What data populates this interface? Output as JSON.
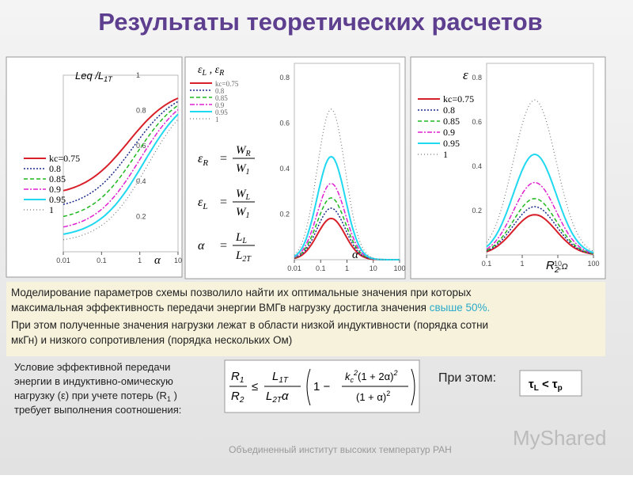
{
  "title": "Результаты теоретических  расчетов",
  "panels": [
    {
      "ylabel": {
        "main": "Leq /L",
        "sub": "1T"
      },
      "xlabel": "α",
      "xticks": [
        "0.01",
        "0.1",
        "1",
        "10"
      ],
      "yticks": [
        "1",
        "0.8",
        "0.6",
        "0.4",
        "0.2"
      ],
      "legend": [
        "kc=0.75",
        "0.8",
        "0.85",
        "0.9",
        "0.95",
        "1"
      ]
    },
    {
      "ylabel": {
        "a": "ε",
        "asub": "L",
        "sep": " , ",
        "b": "ε",
        "bsub": "R"
      },
      "xlabel": "α",
      "xticks": [
        "0.01",
        "0.1",
        "1",
        "10",
        "100"
      ],
      "yticks": [
        "0.8",
        "0.6",
        "0.4",
        "0.2"
      ],
      "legend": [
        "kc=0.75",
        "0.8",
        "0.85",
        "0.9",
        "0.95",
        "1"
      ],
      "formulas": [
        {
          "lhs": "ε",
          "lsub": "R",
          "num": "W",
          "nsub": "R",
          "den": "W",
          "dsub": "1"
        },
        {
          "lhs": "ε",
          "lsub": "L",
          "num": "W",
          "nsub": "L",
          "den": "W",
          "dsub": "1"
        },
        {
          "lhs": "α",
          "lsub": "",
          "num": "L",
          "nsub": "L",
          "den": "L",
          "dsub": "2T"
        }
      ]
    },
    {
      "ylabel": "ε",
      "xlabel": {
        "main": "R",
        "sub": "2",
        "rest": ",Ω"
      },
      "xticks": [
        "0.1",
        "1",
        "10",
        "100"
      ],
      "yticks": [
        "0.8",
        "0.6",
        "0.4",
        "0.2"
      ],
      "legend": [
        "kc=0.75",
        "0.8",
        "0.85",
        "0.9",
        "0.95",
        "1"
      ]
    }
  ],
  "summary": {
    "p1": "Моделирование параметров схемы позволило найти их оптимальные значения при которых",
    "p1b": "максимальная эффективность передачи энергии ВМГв нагрузку достигла значения ",
    "p1c": "свыше 50%.",
    "p2": "При этом полученные  значения нагрузки лежат  в области низкой индуктивности (порядка сотни",
    "p2b": "мкГн) и низкого сопротивления (порядка нескольких Ом)"
  },
  "condition": {
    "lines": [
      "Условие эффективной передачи",
      "энергии в  индуктивно-омическую",
      "нагрузку (ε) при учете потерь (R",
      "требует выполнения соотношения:"
    ],
    "r1sub": "1",
    "r1close": " )",
    "formula": {
      "R1": "R",
      "R1s": "1",
      "R2": "R",
      "R2s": "2",
      "le": "≤",
      "L1": "L",
      "L1s": "1T",
      "L2": "L",
      "L2s": "2T",
      "a": "α",
      "one": "1 −",
      "k": "k",
      "ks": "c",
      "k2": "2",
      "n": "(1 + 2α)",
      "n2": "2",
      "d": "(1 + α)",
      "d2": "2"
    },
    "then": "При этом:",
    "tau": {
      "t1": "τ",
      "t1s": "L",
      "lt": " < ",
      "t2": "τ",
      "t2s": "p"
    }
  },
  "footer": "Объединенный институт высоких температур РАН",
  "logo": "MyShared"
}
